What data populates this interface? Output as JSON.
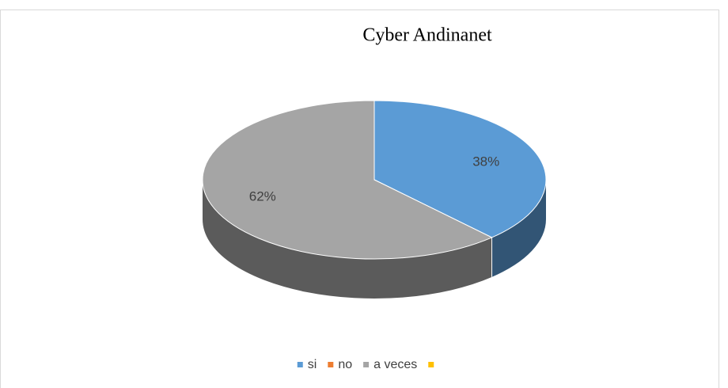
{
  "chart_data": {
    "type": "pie",
    "title": "Cyber Andinanet",
    "categories": [
      "si",
      "no",
      "a veces",
      null
    ],
    "values": [
      38,
      0,
      62,
      0
    ],
    "value_labels": [
      "38%",
      null,
      "62%",
      null
    ],
    "colors": [
      "#5b9bd5",
      "#ed7d31",
      "#a5a5a5",
      "#ffc000"
    ],
    "legend": "bottom"
  }
}
